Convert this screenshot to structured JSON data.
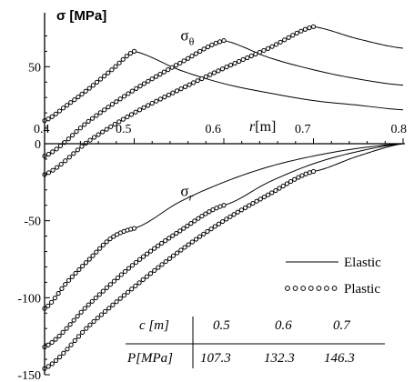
{
  "chart_data": {
    "type": "line",
    "ylabel": "σ [MPa]",
    "xlabel": "r [m]",
    "xlim": [
      0.4,
      0.8
    ],
    "ylim": [
      -150,
      80
    ],
    "xticks": [
      {
        "value": 0.4,
        "label": "0.4"
      },
      {
        "value": 0.5,
        "label": "0.5"
      },
      {
        "value": 0.6,
        "label": "0.6"
      },
      {
        "value": 0.7,
        "label": "0.7"
      },
      {
        "value": 0.8,
        "label": "0.8"
      }
    ],
    "yticks": [
      {
        "value": 50,
        "label": "50"
      },
      {
        "value": 0,
        "label": "0"
      },
      {
        "value": -50,
        "label": "-50"
      },
      {
        "value": -100,
        "label": "-100"
      },
      {
        "value": -150,
        "label": "-150"
      }
    ],
    "annotations": [
      {
        "id": "sigma-theta",
        "symbol": "σ",
        "sub": "θ",
        "x": 0.505,
        "y": 70
      },
      {
        "id": "sigma-r",
        "symbol": "σ",
        "sub": "r",
        "x": 0.505,
        "y": -31
      }
    ],
    "legend": {
      "position": "lower-right",
      "entries": [
        {
          "label": "Elastic",
          "style": "solid"
        },
        {
          "label": "Plastic",
          "style": "circles"
        }
      ]
    },
    "table": {
      "row_c_label": "c  [m]",
      "row_P_label": "P[MPa]",
      "c": [
        "0.5",
        "0.6",
        "0.7"
      ],
      "P": [
        "107.3",
        "132.3",
        "146.3"
      ]
    },
    "cases": [
      {
        "c": 0.5,
        "sigma_theta_plastic": [
          [
            0.4,
            15
          ],
          [
            0.425,
            25
          ],
          [
            0.45,
            36
          ],
          [
            0.475,
            48
          ],
          [
            0.5,
            60
          ]
        ],
        "sigma_theta_elastic": [
          [
            0.5,
            60
          ],
          [
            0.55,
            48
          ],
          [
            0.6,
            39
          ],
          [
            0.65,
            33
          ],
          [
            0.7,
            28
          ],
          [
            0.75,
            25
          ],
          [
            0.8,
            22
          ]
        ],
        "sigma_r_plastic": [
          [
            0.4,
            -107
          ],
          [
            0.425,
            -90
          ],
          [
            0.45,
            -75
          ],
          [
            0.475,
            -61
          ],
          [
            0.5,
            -55
          ]
        ],
        "sigma_r_elastic": [
          [
            0.5,
            -55
          ],
          [
            0.55,
            -38
          ],
          [
            0.6,
            -25
          ],
          [
            0.65,
            -15
          ],
          [
            0.7,
            -8
          ],
          [
            0.75,
            -3
          ],
          [
            0.8,
            0
          ]
        ]
      },
      {
        "c": 0.6,
        "sigma_theta_plastic": [
          [
            0.4,
            -8
          ],
          [
            0.45,
            15
          ],
          [
            0.5,
            35
          ],
          [
            0.55,
            52
          ],
          [
            0.6,
            67
          ]
        ],
        "sigma_theta_elastic": [
          [
            0.6,
            67
          ],
          [
            0.65,
            56
          ],
          [
            0.7,
            48
          ],
          [
            0.75,
            42
          ],
          [
            0.8,
            38
          ]
        ],
        "sigma_r_plastic": [
          [
            0.4,
            -132
          ],
          [
            0.45,
            -104
          ],
          [
            0.5,
            -78
          ],
          [
            0.55,
            -57
          ],
          [
            0.6,
            -40
          ]
        ],
        "sigma_r_elastic": [
          [
            0.6,
            -40
          ],
          [
            0.65,
            -25
          ],
          [
            0.7,
            -13
          ],
          [
            0.75,
            -5
          ],
          [
            0.8,
            0
          ]
        ]
      },
      {
        "c": 0.7,
        "sigma_theta_plastic": [
          [
            0.4,
            -20
          ],
          [
            0.45,
            2
          ],
          [
            0.5,
            20
          ],
          [
            0.55,
            35
          ],
          [
            0.6,
            49
          ],
          [
            0.65,
            62
          ],
          [
            0.7,
            76
          ]
        ],
        "sigma_theta_elastic": [
          [
            0.7,
            76
          ],
          [
            0.75,
            68
          ],
          [
            0.8,
            62
          ]
        ],
        "sigma_r_plastic": [
          [
            0.4,
            -146
          ],
          [
            0.45,
            -118
          ],
          [
            0.5,
            -93
          ],
          [
            0.55,
            -70
          ],
          [
            0.6,
            -50
          ],
          [
            0.65,
            -33
          ],
          [
            0.7,
            -18
          ]
        ],
        "sigma_r_elastic": [
          [
            0.7,
            -18
          ],
          [
            0.75,
            -8
          ],
          [
            0.8,
            0
          ]
        ]
      }
    ]
  }
}
